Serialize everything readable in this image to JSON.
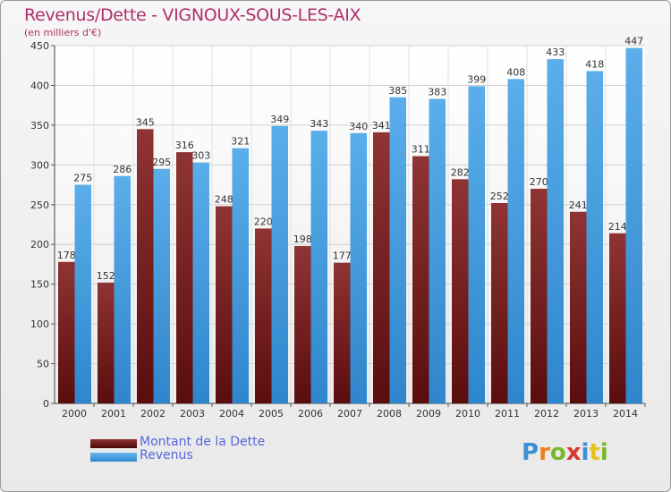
{
  "chart_data": {
    "type": "bar",
    "title": "Revenus/Dette - VIGNOUX-SOUS-LES-AIX",
    "subtitle": "(en milliers d'€)",
    "categories": [
      "2000",
      "2001",
      "2002",
      "2003",
      "2004",
      "2005",
      "2006",
      "2007",
      "2008",
      "2009",
      "2010",
      "2011",
      "2012",
      "2013",
      "2014"
    ],
    "series": [
      {
        "name": "Montant de la Dette",
        "color": "#7a1f1f",
        "values": [
          178,
          152,
          345,
          316,
          248,
          220,
          198,
          177,
          341,
          311,
          282,
          252,
          270,
          241,
          214
        ]
      },
      {
        "name": "Revenus",
        "color": "#4a9ee0",
        "values": [
          275,
          286,
          295,
          303,
          321,
          349,
          343,
          340,
          385,
          383,
          399,
          408,
          433,
          418,
          447
        ]
      }
    ],
    "ylim": [
      0,
      450
    ],
    "yticks": [
      0,
      50,
      100,
      150,
      200,
      250,
      300,
      350,
      400,
      450
    ],
    "grid": true,
    "legend_position": "bottom-left"
  },
  "logo": {
    "letters": [
      "P",
      "r",
      "o",
      "x",
      "i",
      "t",
      "i"
    ],
    "colors": [
      "#3d8fd6",
      "#e8821e",
      "#77b82a",
      "#d63a2f",
      "#3d8fd6",
      "#e8c21e",
      "#77b82a"
    ]
  }
}
